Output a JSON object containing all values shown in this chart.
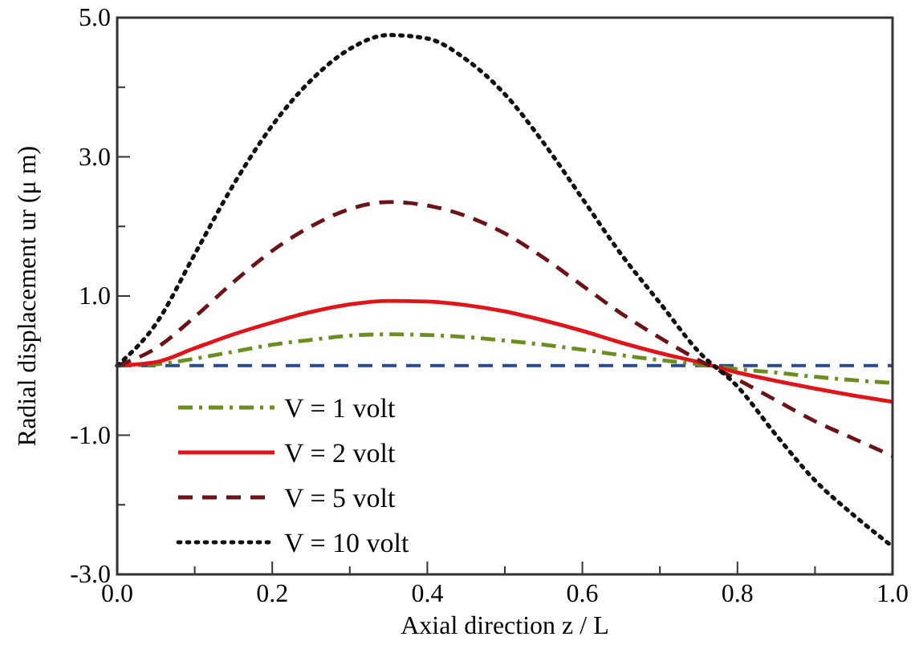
{
  "chart_data": {
    "type": "line",
    "xlabel": "Axial direction z / L",
    "ylabel": "Radial displacement ur (μ m)",
    "x": [
      0,
      0.05,
      0.1,
      0.15,
      0.2,
      0.25,
      0.3,
      0.35,
      0.4,
      0.45,
      0.5,
      0.55,
      0.6,
      0.65,
      0.7,
      0.75,
      0.8,
      0.85,
      0.9,
      0.95,
      1.0
    ],
    "series": [
      {
        "name": "V = 1 volt",
        "color": "#6b8e23",
        "line_style": "dashdot",
        "values": [
          0,
          0.02,
          0.1,
          0.2,
          0.3,
          0.37,
          0.43,
          0.45,
          0.44,
          0.41,
          0.36,
          0.3,
          0.23,
          0.15,
          0.08,
          0.02,
          -0.05,
          -0.1,
          -0.16,
          -0.21,
          -0.25
        ]
      },
      {
        "name": "V = 2 volt",
        "color": "#e0151b",
        "line_style": "solid",
        "values": [
          0,
          0.05,
          0.25,
          0.45,
          0.62,
          0.77,
          0.88,
          0.93,
          0.92,
          0.87,
          0.78,
          0.65,
          0.5,
          0.33,
          0.18,
          0.05,
          -0.1,
          -0.22,
          -0.33,
          -0.43,
          -0.52
        ]
      },
      {
        "name": "V = 5 volt",
        "color": "#6b1418",
        "line_style": "dashed",
        "values": [
          0,
          0.25,
          0.7,
          1.2,
          1.65,
          2.0,
          2.25,
          2.35,
          2.3,
          2.15,
          1.9,
          1.55,
          1.15,
          0.75,
          0.4,
          0.08,
          -0.2,
          -0.5,
          -0.8,
          -1.05,
          -1.3
        ]
      },
      {
        "name": "V = 10 volt",
        "color": "#111111",
        "line_style": "dotted",
        "values": [
          0,
          0.6,
          1.6,
          2.6,
          3.45,
          4.1,
          4.55,
          4.75,
          4.7,
          4.4,
          3.9,
          3.2,
          2.4,
          1.6,
          0.9,
          0.2,
          -0.3,
          -1.0,
          -1.65,
          -2.15,
          -2.6
        ]
      }
    ],
    "xlim": [
      0,
      1
    ],
    "ylim": [
      -3,
      5
    ],
    "xticks": [
      {
        "value": 0,
        "label": "0.0"
      },
      {
        "value": 0.1,
        "label": null
      },
      {
        "value": 0.2,
        "label": "0.2"
      },
      {
        "value": 0.3,
        "label": null
      },
      {
        "value": 0.4,
        "label": "0.4"
      },
      {
        "value": 0.5,
        "label": null
      },
      {
        "value": 0.6,
        "label": "0.6"
      },
      {
        "value": 0.7,
        "label": null
      },
      {
        "value": 0.8,
        "label": "0.8"
      },
      {
        "value": 0.9,
        "label": null
      },
      {
        "value": 1,
        "label": "1.0"
      }
    ],
    "yticks": [
      {
        "value": -3,
        "label": "-3.0"
      },
      {
        "value": -2,
        "label": null
      },
      {
        "value": -1,
        "label": "-1.0"
      },
      {
        "value": 0,
        "label": null
      },
      {
        "value": 1,
        "label": "1.0"
      },
      {
        "value": 2,
        "label": null
      },
      {
        "value": 3,
        "label": "3.0"
      },
      {
        "value": 4,
        "label": null
      },
      {
        "value": 5,
        "label": "5.0"
      }
    ],
    "ref_lines": [
      {
        "axis": "y",
        "value": 0,
        "color": "#2b4a8c",
        "line_style": "dashed"
      }
    ],
    "legend": "bottom left",
    "grid": false
  }
}
